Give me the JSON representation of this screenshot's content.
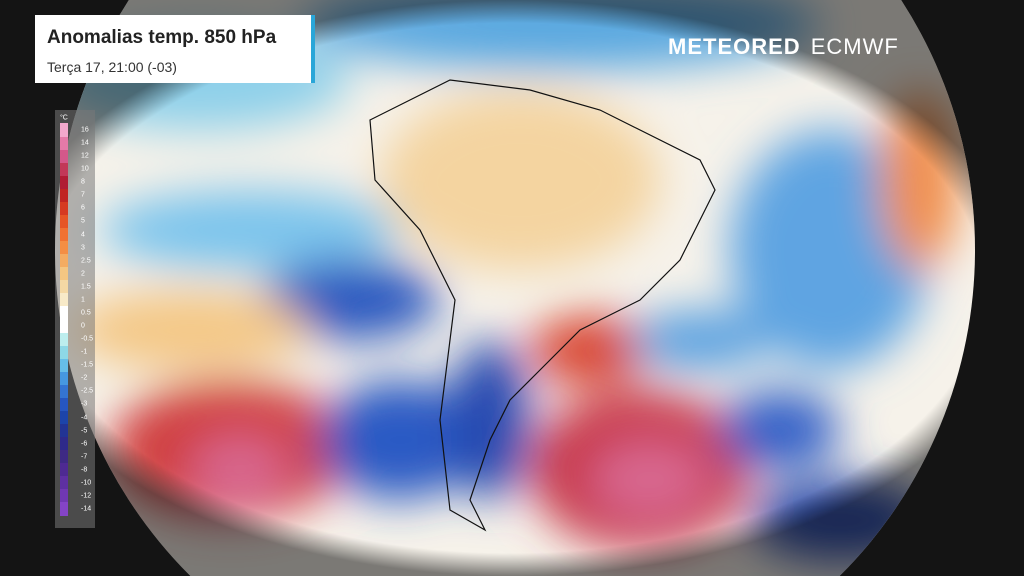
{
  "header": {
    "title": "Anomalias temp. 850 hPa",
    "subtitle": "Terça 17, 21:00 (-03)"
  },
  "logo": {
    "brand": "METEORED",
    "partner": "ECMWF"
  },
  "legend": {
    "unit": "°C",
    "labels": [
      16,
      14,
      12,
      10,
      8,
      7,
      6,
      5,
      4,
      3,
      2.5,
      2,
      1.5,
      1,
      0.5,
      0,
      -0.5,
      -1,
      -1.5,
      -2,
      -2.5,
      -3,
      -4,
      -5,
      -6,
      -7,
      -8,
      -10,
      -12,
      -14
    ],
    "colors": [
      "#f2a8cc",
      "#e47aa8",
      "#d4588a",
      "#c23858",
      "#b01c34",
      "#c02422",
      "#d63a22",
      "#e65626",
      "#f07232",
      "#f48e44",
      "#f4ac62",
      "#f4c682",
      "#f4d8a4",
      "#f8eac8",
      "#ffffff",
      "#ffffff",
      "#bdeeee",
      "#8ed8e6",
      "#66bee8",
      "#4698e0",
      "#3474d2",
      "#2656c0",
      "#1c44aa",
      "#223494",
      "#2e2a8a",
      "#3e2a84",
      "#4e2a92",
      "#5e30a2",
      "#7038b2",
      "#8444c6"
    ]
  }
}
